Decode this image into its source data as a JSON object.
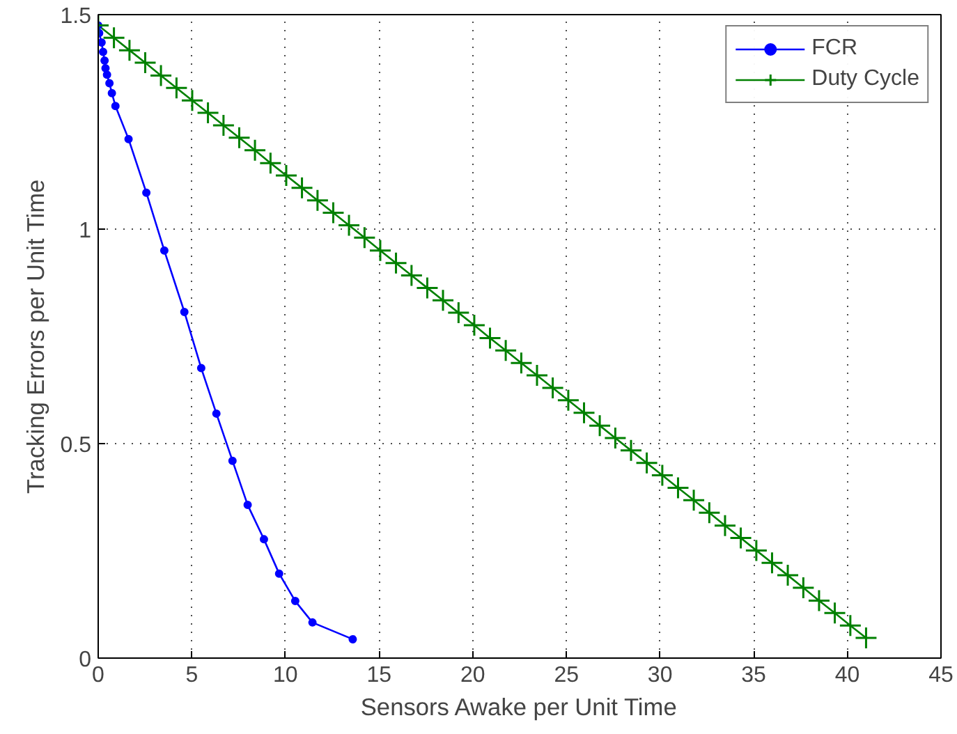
{
  "chart_data": {
    "type": "line",
    "xlabel": "Sensors Awake per Unit Time",
    "ylabel": "Tracking Errors per Unit Time",
    "xlim": [
      0,
      45
    ],
    "ylim": [
      0,
      1.5
    ],
    "xticks": [
      0,
      5,
      10,
      15,
      20,
      25,
      30,
      35,
      40,
      45
    ],
    "yticks": [
      0,
      0.5,
      1,
      1.5
    ],
    "grid": true,
    "legend": "top right",
    "line_style": "solid",
    "series": [
      {
        "name": "FCR",
        "color": "#0000ff",
        "marker": "circle",
        "x": [
          0,
          0.05,
          0.18,
          0.26,
          0.34,
          0.39,
          0.47,
          0.6,
          0.73,
          0.92,
          1.62,
          2.57,
          3.53,
          4.6,
          5.5,
          6.31,
          7.17,
          7.98,
          8.85,
          9.66,
          10.52,
          11.44,
          13.59
        ],
        "values": [
          1.475,
          1.457,
          1.435,
          1.413,
          1.393,
          1.375,
          1.36,
          1.34,
          1.317,
          1.287,
          1.21,
          1.085,
          0.95,
          0.807,
          0.676,
          0.57,
          0.46,
          0.357,
          0.277,
          0.197,
          0.133,
          0.083,
          0.044
        ]
      },
      {
        "name": "Duty Cycle",
        "color": "#008000",
        "marker": "cross",
        "x": [
          0,
          0.84,
          1.67,
          2.51,
          3.35,
          4.18,
          5.02,
          5.86,
          6.69,
          7.53,
          8.37,
          9.2,
          10.04,
          10.88,
          11.71,
          12.55,
          13.39,
          14.22,
          15.06,
          15.9,
          16.73,
          17.57,
          18.41,
          19.24,
          20.08,
          20.92,
          21.76,
          22.59,
          23.43,
          24.27,
          25.1,
          25.94,
          26.78,
          27.61,
          28.45,
          29.29,
          30.12,
          30.96,
          31.8,
          32.63,
          33.47,
          34.31,
          35.14,
          35.98,
          36.82,
          37.65,
          38.49,
          39.33,
          40.16,
          41.0
        ],
        "values": [
          1.475,
          1.446,
          1.417,
          1.388,
          1.358,
          1.329,
          1.3,
          1.271,
          1.242,
          1.213,
          1.184,
          1.154,
          1.125,
          1.096,
          1.067,
          1.038,
          1.009,
          0.98,
          0.95,
          0.921,
          0.892,
          0.863,
          0.834,
          0.805,
          0.776,
          0.746,
          0.717,
          0.688,
          0.659,
          0.63,
          0.601,
          0.572,
          0.542,
          0.513,
          0.484,
          0.455,
          0.426,
          0.397,
          0.368,
          0.339,
          0.309,
          0.28,
          0.251,
          0.222,
          0.193,
          0.164,
          0.134,
          0.105,
          0.076,
          0.047
        ]
      }
    ]
  }
}
